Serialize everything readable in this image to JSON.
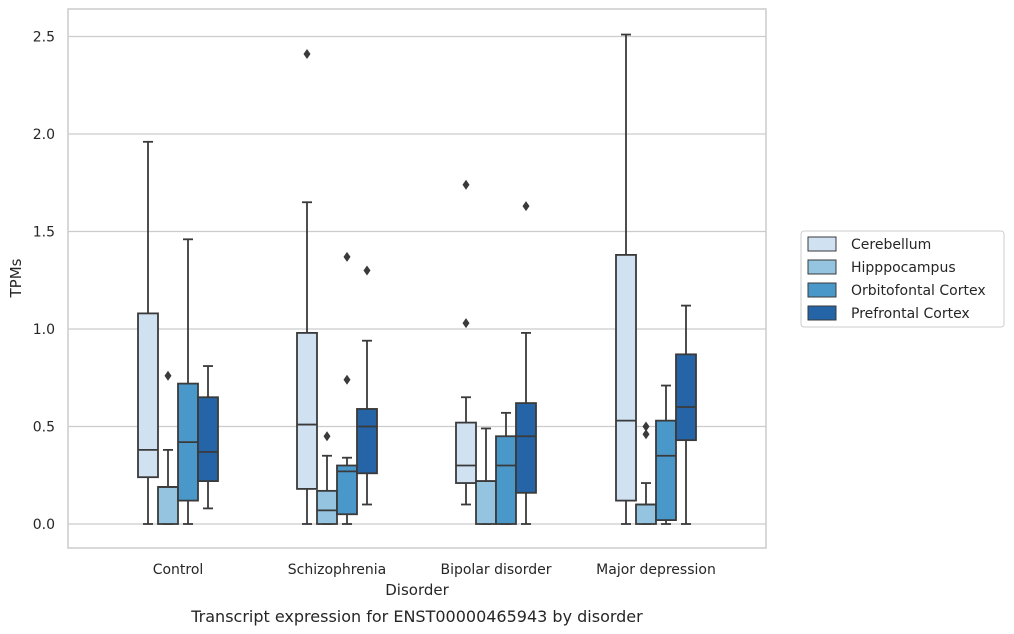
{
  "chart_data": {
    "type": "box",
    "title": "",
    "caption": "Transcript expression for ENST00000465943 by disorder",
    "xlabel": "Disorder",
    "ylabel": "TPMs",
    "ylim": [
      -0.12,
      2.64
    ],
    "yticks": [
      "0.0",
      "0.5",
      "1.0",
      "1.5",
      "2.0",
      "2.5"
    ],
    "grid": true,
    "legend_position": "right",
    "categories": [
      "Control",
      "Schizophrenia",
      "Bipolar disorder",
      "Major depression"
    ],
    "series": [
      {
        "name": "Cerebellum",
        "color": "#d0e1f2",
        "boxes": [
          {
            "whislo": 0.0,
            "q1": 0.24,
            "med": 0.38,
            "q3": 1.08,
            "whishi": 1.96,
            "fliers": []
          },
          {
            "whislo": 0.0,
            "q1": 0.18,
            "med": 0.51,
            "q3": 0.98,
            "whishi": 1.65,
            "fliers": [
              2.41
            ]
          },
          {
            "whislo": 0.1,
            "q1": 0.21,
            "med": 0.3,
            "q3": 0.52,
            "whishi": 0.65,
            "fliers": [
              1.03,
              1.74
            ]
          },
          {
            "whislo": 0.0,
            "q1": 0.12,
            "med": 0.53,
            "q3": 1.38,
            "whishi": 2.51,
            "fliers": []
          }
        ]
      },
      {
        "name": "Hipppocampus",
        "color": "#94c4df",
        "boxes": [
          {
            "whislo": 0.0,
            "q1": 0.0,
            "med": 0.19,
            "q3": 0.19,
            "whishi": 0.38,
            "fliers": [
              0.76
            ]
          },
          {
            "whislo": 0.0,
            "q1": 0.0,
            "med": 0.07,
            "q3": 0.17,
            "whishi": 0.35,
            "fliers": [
              0.45
            ]
          },
          {
            "whislo": 0.0,
            "q1": 0.0,
            "med": 0.22,
            "q3": 0.22,
            "whishi": 0.49,
            "fliers": []
          },
          {
            "whislo": 0.0,
            "q1": 0.0,
            "med": 0.1,
            "q3": 0.1,
            "whishi": 0.21,
            "fliers": [
              0.46,
              0.5
            ]
          }
        ]
      },
      {
        "name": "Orbitofontal Cortex",
        "color": "#4a98c9",
        "boxes": [
          {
            "whislo": 0.0,
            "q1": 0.12,
            "med": 0.42,
            "q3": 0.72,
            "whishi": 1.46,
            "fliers": []
          },
          {
            "whislo": 0.0,
            "q1": 0.05,
            "med": 0.27,
            "q3": 0.3,
            "whishi": 0.34,
            "fliers": [
              0.74,
              1.37
            ]
          },
          {
            "whislo": 0.0,
            "q1": 0.0,
            "med": 0.3,
            "q3": 0.45,
            "whishi": 0.57,
            "fliers": []
          },
          {
            "whislo": 0.0,
            "q1": 0.02,
            "med": 0.35,
            "q3": 0.53,
            "whishi": 0.71,
            "fliers": []
          }
        ]
      },
      {
        "name": "Prefrontal Cortex",
        "color": "#2464a7",
        "boxes": [
          {
            "whislo": 0.08,
            "q1": 0.22,
            "med": 0.37,
            "q3": 0.65,
            "whishi": 0.81,
            "fliers": []
          },
          {
            "whislo": 0.1,
            "q1": 0.26,
            "med": 0.5,
            "q3": 0.59,
            "whishi": 0.94,
            "fliers": [
              1.3
            ]
          },
          {
            "whislo": 0.0,
            "q1": 0.16,
            "med": 0.45,
            "q3": 0.62,
            "whishi": 0.98,
            "fliers": [
              1.63
            ]
          },
          {
            "whislo": 0.0,
            "q1": 0.43,
            "med": 0.6,
            "q3": 0.87,
            "whishi": 1.12,
            "fliers": []
          }
        ]
      }
    ]
  }
}
